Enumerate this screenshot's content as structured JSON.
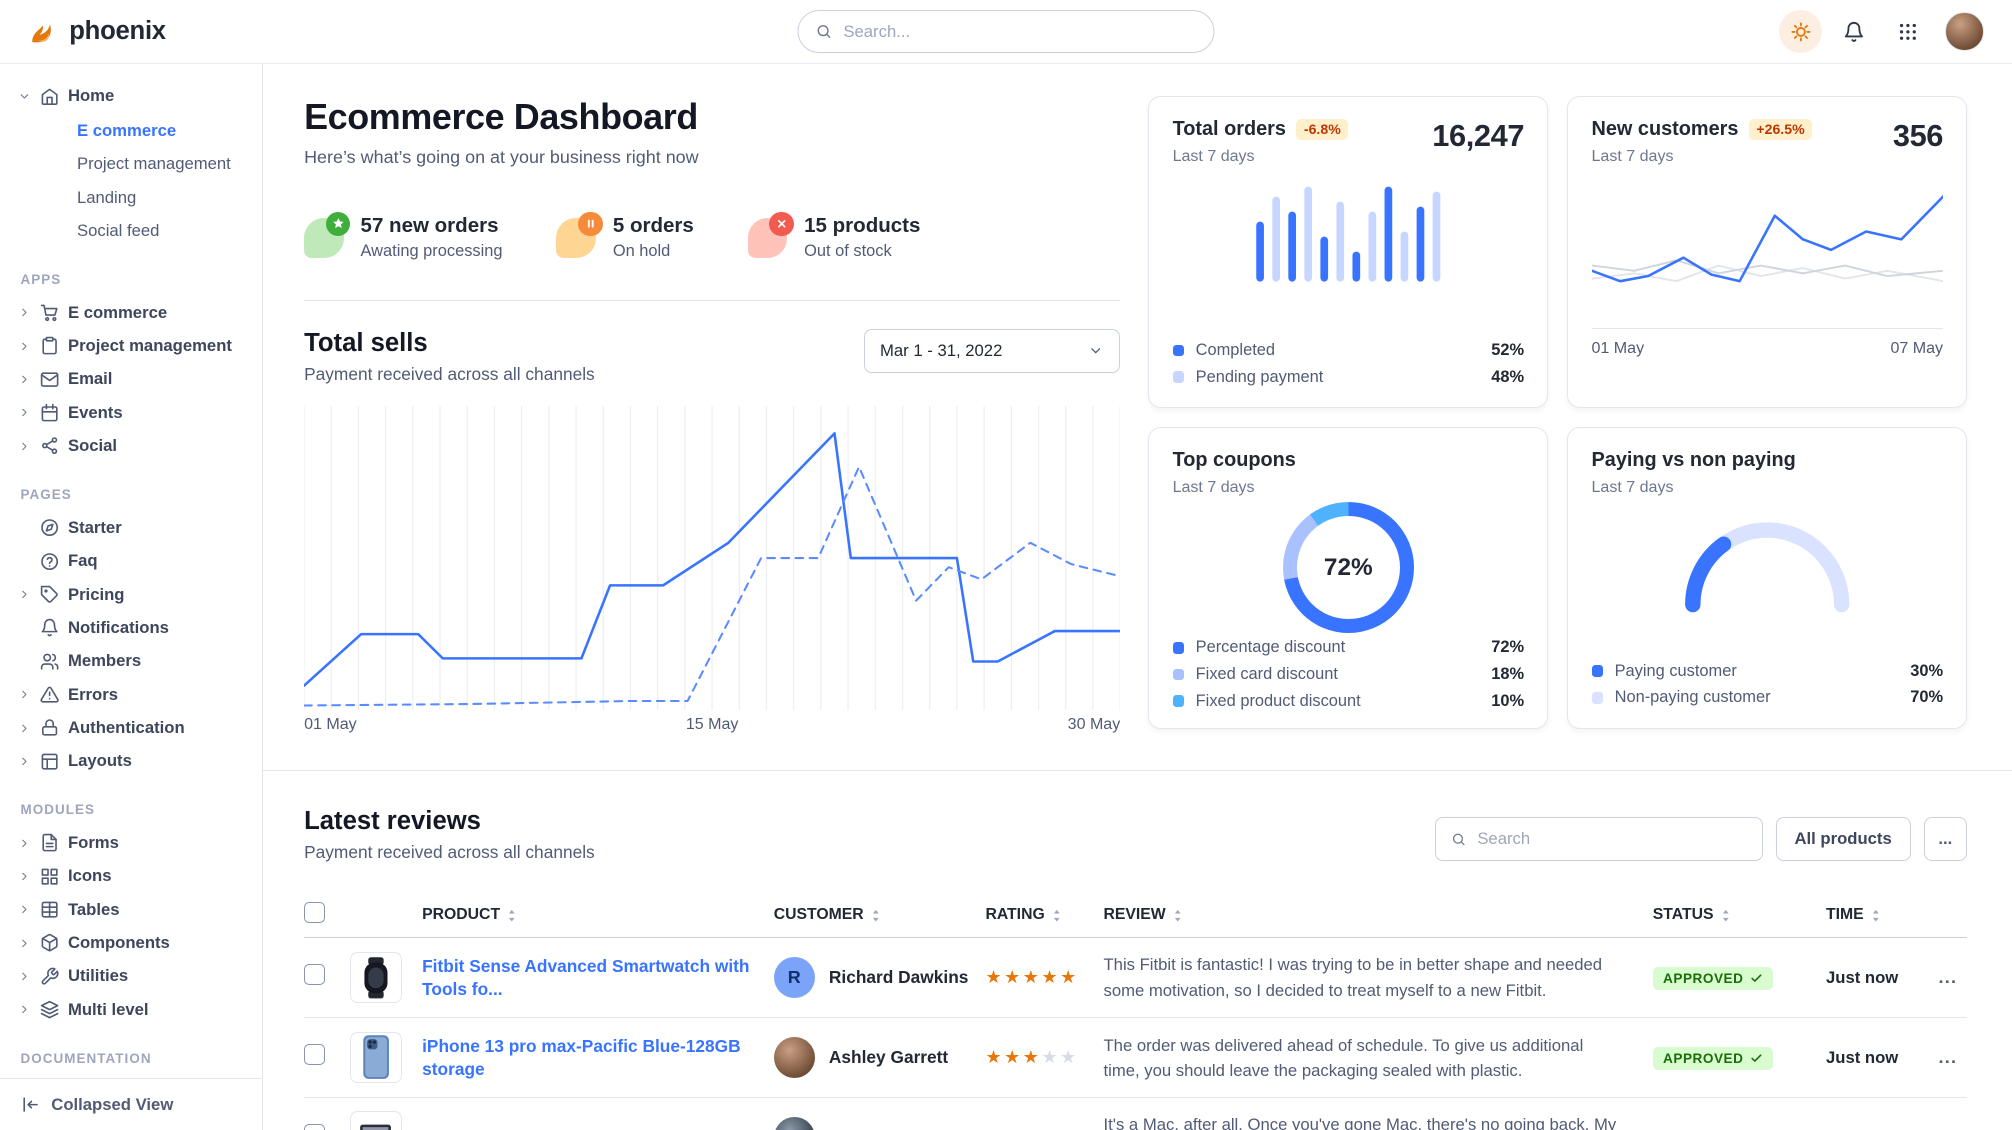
{
  "theme": {
    "primary": "#3874ff",
    "success": "#25b003",
    "warning": "#e5780b",
    "danger": "#fa3b1d",
    "text_dark": "#222834",
    "text_body": "#525b75",
    "border": "#e3e6ed"
  },
  "navbar": {
    "brand": "phoenix",
    "search": {
      "placeholder": "Search..."
    },
    "actions": [
      "theme-toggle",
      "notifications",
      "apps-grid",
      "profile-avatar"
    ]
  },
  "sidebar": {
    "sections": [
      {
        "label": "",
        "items": [
          {
            "label": "Home",
            "icon": "home",
            "expanded": true,
            "children": [
              {
                "label": "E commerce",
                "active": true
              },
              {
                "label": "Project management"
              },
              {
                "label": "Landing"
              },
              {
                "label": "Social feed"
              }
            ]
          }
        ]
      },
      {
        "label": "APPS",
        "items": [
          {
            "label": "E commerce",
            "icon": "cart",
            "chevron": true
          },
          {
            "label": "Project management",
            "icon": "clipboard",
            "chevron": true
          },
          {
            "label": "Email",
            "icon": "mail",
            "chevron": true
          },
          {
            "label": "Events",
            "icon": "calendar",
            "chevron": true
          },
          {
            "label": "Social",
            "icon": "share",
            "chevron": true
          }
        ]
      },
      {
        "label": "PAGES",
        "items": [
          {
            "label": "Starter",
            "icon": "compass"
          },
          {
            "label": "Faq",
            "icon": "help"
          },
          {
            "label": "Pricing",
            "icon": "tag",
            "chevron": true
          },
          {
            "label": "Notifications",
            "icon": "bell"
          },
          {
            "label": "Members",
            "icon": "users"
          },
          {
            "label": "Errors",
            "icon": "alert",
            "chevron": true
          },
          {
            "label": "Authentication",
            "icon": "lock",
            "chevron": true
          },
          {
            "label": "Layouts",
            "icon": "layout",
            "chevron": true
          }
        ]
      },
      {
        "label": "MODULES",
        "items": [
          {
            "label": "Forms",
            "icon": "form",
            "chevron": true
          },
          {
            "label": "Icons",
            "icon": "grid",
            "chevron": true
          },
          {
            "label": "Tables",
            "icon": "table",
            "chevron": true
          },
          {
            "label": "Components",
            "icon": "package",
            "chevron": true
          },
          {
            "label": "Utilities",
            "icon": "tool",
            "chevron": true
          },
          {
            "label": "Multi level",
            "icon": "layers",
            "chevron": true
          }
        ]
      },
      {
        "label": "DOCUMENTATION",
        "items": []
      }
    ],
    "footer": {
      "label": "Collapsed View",
      "icon": "collapse"
    }
  },
  "page": {
    "title": "Ecommerce Dashboard",
    "subtitle": "Here’s what’s going on at your business right now"
  },
  "stats": [
    {
      "id": "new-orders",
      "icon": "star",
      "tone": "success",
      "value": "57 new orders",
      "caption": "Awating processing"
    },
    {
      "id": "on-hold",
      "icon": "pause",
      "tone": "warning",
      "value": "5 orders",
      "caption": "On hold"
    },
    {
      "id": "out-of-stock",
      "icon": "cross",
      "tone": "danger",
      "value": "15 products",
      "caption": "Out of stock"
    }
  ],
  "total_sells": {
    "title": "Total sells",
    "subtitle": "Payment received across all channels",
    "date_range": "Mar 1 - 31, 2022",
    "chart_data": {
      "type": "line",
      "x_ticks": [
        "01 May",
        "15 May",
        "30 May"
      ],
      "grid_vertical": 30,
      "series": [
        {
          "name": "current",
          "style": "solid",
          "color": "#3874ff",
          "width": 2,
          "points": [
            [
              0,
              8
            ],
            [
              7,
              25
            ],
            [
              14,
              25
            ],
            [
              17,
              17
            ],
            [
              34,
              17
            ],
            [
              37.5,
              41
            ],
            [
              44,
              41
            ],
            [
              52,
              55
            ],
            [
              65,
              91
            ],
            [
              67,
              50
            ],
            [
              72,
              50
            ],
            [
              80,
              50
            ],
            [
              82,
              16
            ],
            [
              85,
              16
            ],
            [
              92,
              26
            ],
            [
              100,
              26
            ]
          ]
        },
        {
          "name": "previous",
          "style": "dashed",
          "color": "#5a8bff",
          "width": 1.6,
          "points": [
            [
              0,
              1.5
            ],
            [
              20,
              2
            ],
            [
              40,
              3
            ],
            [
              47,
              3
            ],
            [
              56,
              50
            ],
            [
              63,
              50
            ],
            [
              68,
              80
            ],
            [
              75,
              36
            ],
            [
              79,
              47
            ],
            [
              83,
              43
            ],
            [
              89,
              55
            ],
            [
              94,
              48
            ],
            [
              100,
              44
            ]
          ]
        }
      ]
    }
  },
  "cards": {
    "total_orders": {
      "title": "Total orders",
      "badge": "-6.8%",
      "period": "Last 7 days",
      "value": "16,247",
      "chart_data": {
        "type": "bar",
        "values": [
          60,
          85,
          70,
          95,
          45,
          80,
          30,
          70,
          95,
          50,
          75,
          90
        ],
        "bar_colors": [
          "#3874ff",
          "#c7d6ff"
        ],
        "ymax": 100
      },
      "legend": [
        {
          "label": "Completed",
          "value": "52%",
          "color": "#3874ff"
        },
        {
          "label": "Pending payment",
          "value": "48%",
          "color": "#c7d6ff"
        }
      ]
    },
    "new_customers": {
      "title": "New customers",
      "badge": "+26.5%",
      "period": "Last 7 days",
      "value": "356",
      "chart_data": {
        "type": "line",
        "x_ticks": [
          "01 May",
          "07 May"
        ],
        "series": [
          {
            "name": "baseline-a",
            "style": "solid",
            "color": "#e2e5ea",
            "width": 1.5,
            "points": [
              [
                0,
                30
              ],
              [
                12,
                34
              ],
              [
                24,
                28
              ],
              [
                36,
                40
              ],
              [
                48,
                32
              ],
              [
                60,
                38
              ],
              [
                72,
                30
              ],
              [
                84,
                36
              ],
              [
                100,
                28
              ]
            ]
          },
          {
            "name": "baseline-b",
            "style": "solid",
            "color": "#d0d4dd",
            "width": 1.5,
            "points": [
              [
                0,
                40
              ],
              [
                12,
                36
              ],
              [
                24,
                44
              ],
              [
                36,
                34
              ],
              [
                48,
                40
              ],
              [
                60,
                34
              ],
              [
                72,
                40
              ],
              [
                84,
                32
              ],
              [
                100,
                36
              ]
            ]
          },
          {
            "name": "new-customers",
            "style": "solid",
            "color": "#3874ff",
            "width": 2,
            "points": [
              [
                0,
                36
              ],
              [
                8,
                28
              ],
              [
                16,
                32
              ],
              [
                26,
                46
              ],
              [
                34,
                33
              ],
              [
                42,
                28
              ],
              [
                52,
                78
              ],
              [
                60,
                60
              ],
              [
                68,
                52
              ],
              [
                78,
                66
              ],
              [
                88,
                60
              ],
              [
                100,
                93
              ]
            ]
          }
        ]
      }
    },
    "top_coupons": {
      "title": "Top coupons",
      "period": "Last 7 days",
      "chart_data": {
        "type": "donut",
        "center_label": "72%",
        "slices": [
          {
            "label": "Percentage discount",
            "value": 72,
            "color": "#3874ff"
          },
          {
            "label": "Fixed card discount",
            "value": 18,
            "color": "#a9c2ff"
          },
          {
            "label": "Fixed product discount",
            "value": 10,
            "color": "#4fb2ff"
          }
        ]
      },
      "legend": [
        {
          "label": "Percentage discount",
          "value": "72%",
          "color": "#3874ff"
        },
        {
          "label": "Fixed card discount",
          "value": "18%",
          "color": "#a9c2ff"
        },
        {
          "label": "Fixed product discount",
          "value": "10%",
          "color": "#4fb2ff"
        }
      ]
    },
    "paying_vs_non_paying": {
      "title": "Paying vs non paying",
      "period": "Last 7 days",
      "chart_data": {
        "type": "gauge",
        "value": 30,
        "max": 100,
        "color": "#3874ff",
        "track": "#d9e2ff"
      },
      "legend": [
        {
          "label": "Paying customer",
          "value": "30%",
          "color": "#3874ff"
        },
        {
          "label": "Non-paying customer",
          "value": "70%",
          "color": "#d9e2ff"
        }
      ]
    }
  },
  "reviews": {
    "title": "Latest reviews",
    "subtitle": "Payment received across all channels",
    "search_placeholder": "Search",
    "filter_button": "All products",
    "more_label": "...",
    "row_action_label": "...",
    "columns": [
      "PRODUCT",
      "CUSTOMER",
      "RATING",
      "REVIEW",
      "STATUS",
      "TIME"
    ],
    "rows": [
      {
        "product": "Fitbit Sense Advanced Smartwatch with Tools fo...",
        "thumb": "watch",
        "customer": {
          "name": "Richard Dawkins",
          "avatar_type": "initial",
          "initial": "R"
        },
        "rating": 5,
        "review": "This Fitbit is fantastic! I was trying to be in better shape and needed some motivation, so I decided to treat myself to a new Fitbit.",
        "status": "APPROVED",
        "time": "Just now"
      },
      {
        "product": "iPhone 13 pro max-Pacific Blue-128GB storage",
        "thumb": "phone",
        "customer": {
          "name": "Ashley Garrett",
          "avatar_type": "photo"
        },
        "rating": 3,
        "review": "The order was delivered ahead of schedule. To give us additional time, you should leave the packaging sealed with plastic.",
        "status": "APPROVED",
        "time": "Just now"
      },
      {
        "product": "",
        "thumb": "laptop",
        "customer": {
          "name": "",
          "avatar_type": "photo-dark"
        },
        "rating": 0,
        "review": "It's a Mac, after all. Once you've gone Mac, there's no going back. My first Mac lasted...",
        "status": "",
        "time": ""
      }
    ]
  }
}
